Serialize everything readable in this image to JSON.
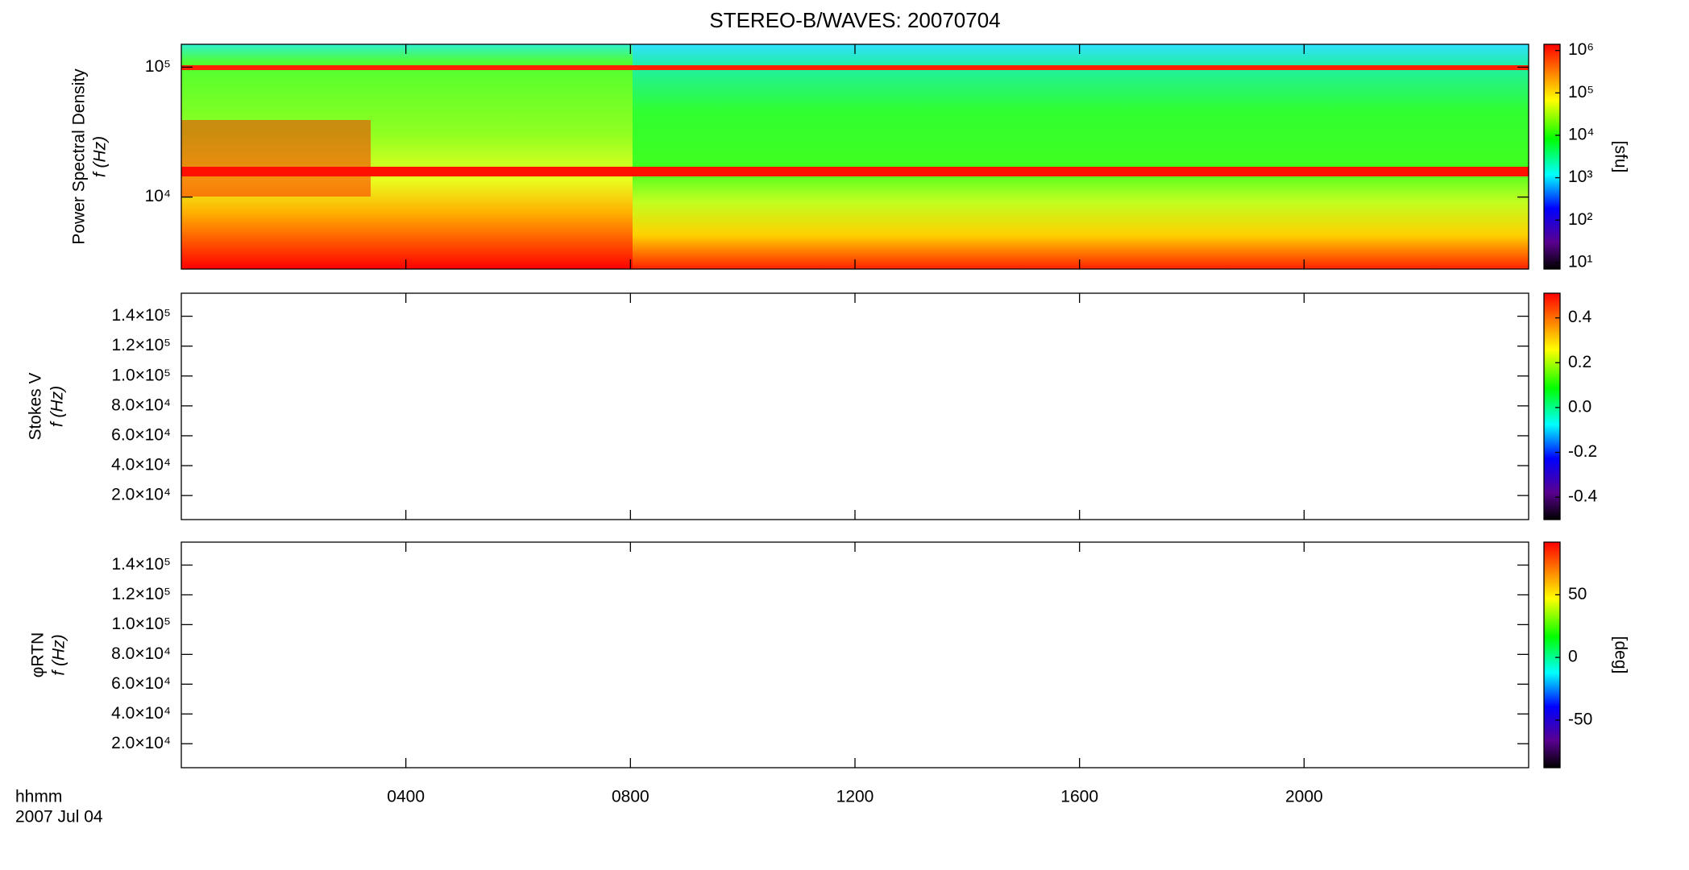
{
  "title": "STEREO-B/WAVES: 20070704",
  "xlabel": "hhmm",
  "date": "2007 Jul 04",
  "xlim": [
    0,
    24
  ],
  "xticks": [
    {
      "value": 4,
      "label": "0400"
    },
    {
      "value": 8,
      "label": "0800"
    },
    {
      "value": 12,
      "label": "1200"
    },
    {
      "value": 16,
      "label": "1600"
    },
    {
      "value": 20,
      "label": "2000"
    }
  ],
  "chart_data": [
    {
      "type": "heatmap",
      "ylabel": "Power Spectral Density",
      "yunit": "f (Hz)",
      "ylog": true,
      "ylim": [
        2790,
        150000
      ],
      "yticks": [
        {
          "value": 10000,
          "label": "10⁴"
        },
        {
          "value": 100000,
          "label": "10⁵"
        }
      ],
      "colorbar": {
        "label": "[sfu]",
        "log": true,
        "lim": [
          7,
          1400000
        ],
        "ticks": [
          {
            "value": 10,
            "label": "10¹"
          },
          {
            "value": 100,
            "label": "10²"
          },
          {
            "value": 1000,
            "label": "10³"
          },
          {
            "value": 10000,
            "label": "10⁴"
          },
          {
            "value": 100000,
            "label": "10⁵"
          },
          {
            "value": 1000000,
            "label": "10⁶"
          }
        ]
      }
    },
    {
      "type": "heatmap",
      "ylabel": "Stokes V",
      "yunit": "f (Hz)",
      "ylog": false,
      "ylim": [
        3900,
        155400
      ],
      "yticks": [
        {
          "value": 20000,
          "label": "2.0×10⁴"
        },
        {
          "value": 40000,
          "label": "4.0×10⁴"
        },
        {
          "value": 60000,
          "label": "6.0×10⁴"
        },
        {
          "value": 80000,
          "label": "8.0×10⁴"
        },
        {
          "value": 100000,
          "label": "1.0×10⁵"
        },
        {
          "value": 120000,
          "label": "1.2×10⁵"
        },
        {
          "value": 140000,
          "label": "1.4×10⁵"
        }
      ],
      "colorbar": {
        "log": false,
        "lim": [
          -0.5,
          0.51
        ],
        "ticks": [
          {
            "value": -0.4,
            "label": "-0.4"
          },
          {
            "value": -0.2,
            "label": "-0.2"
          },
          {
            "value": 0,
            "label": "0.0"
          },
          {
            "value": 0.2,
            "label": "0.2"
          },
          {
            "value": 0.4,
            "label": "0.4"
          }
        ]
      }
    },
    {
      "type": "heatmap",
      "ylabel": "φRTN",
      "yunit": "f (Hz)",
      "ylog": false,
      "ylim": [
        3900,
        155400
      ],
      "yticks": [
        {
          "value": 20000,
          "label": "2.0×10⁴"
        },
        {
          "value": 40000,
          "label": "4.0×10⁴"
        },
        {
          "value": 60000,
          "label": "6.0×10⁴"
        },
        {
          "value": 80000,
          "label": "8.0×10⁴"
        },
        {
          "value": 100000,
          "label": "1.0×10⁵"
        },
        {
          "value": 120000,
          "label": "1.2×10⁵"
        },
        {
          "value": 140000,
          "label": "1.4×10⁵"
        }
      ],
      "colorbar": {
        "label": "[deg]",
        "log": false,
        "lim": [
          -88,
          92
        ],
        "ticks": [
          -50,
          0,
          50
        ]
      }
    }
  ]
}
